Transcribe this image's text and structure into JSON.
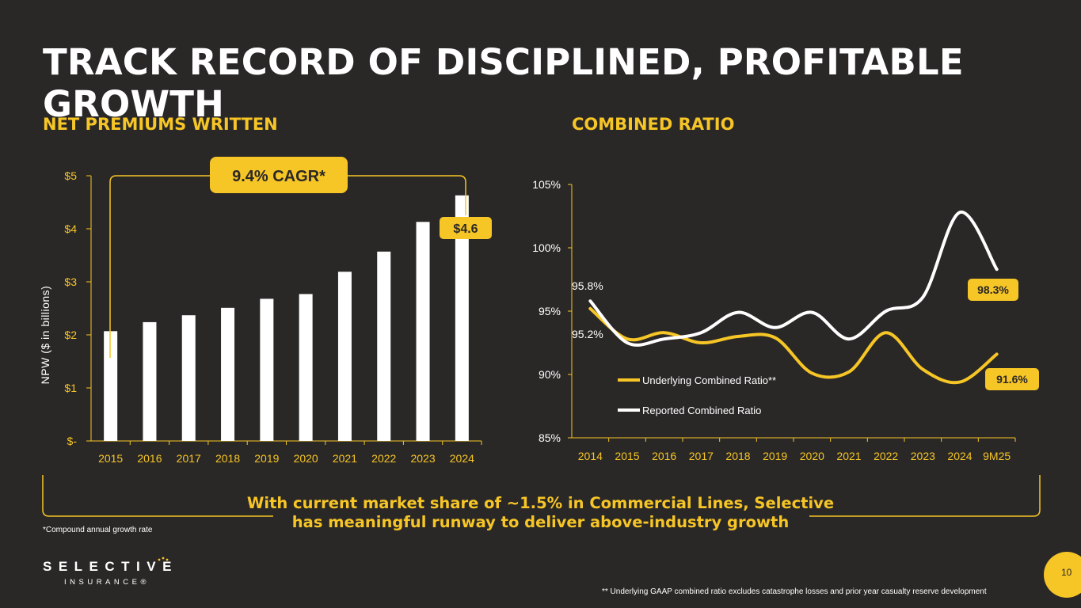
{
  "title": "TRACK RECORD OF DISCIPLINED, PROFITABLE GROWTH",
  "npw_heading": "NET PREMIUMS WRITTEN",
  "cr_heading": "COMBINED RATIO",
  "colors": {
    "accent": "#f6c526",
    "background": "#2a2827",
    "white": "#ffffff"
  },
  "chart_data": [
    {
      "type": "bar",
      "title": "",
      "xlabel": "",
      "ylabel": "NPW ($ in billions)",
      "categories": [
        "2015",
        "2016",
        "2017",
        "2018",
        "2019",
        "2020",
        "2021",
        "2022",
        "2023",
        "2024"
      ],
      "values": [
        2.07,
        2.24,
        2.37,
        2.51,
        2.68,
        2.77,
        3.19,
        3.57,
        4.13,
        4.63
      ],
      "ylim": [
        0,
        5
      ],
      "yticks": [
        0,
        1,
        2,
        3,
        4,
        5
      ],
      "ytick_labels": [
        "$-",
        "$1",
        "$2",
        "$3",
        "$4",
        "$5"
      ],
      "callout": "$4.6",
      "cagr_label": "9.4% CAGR*",
      "grid": false
    },
    {
      "type": "line",
      "title": "",
      "x": [
        "2014",
        "2015",
        "2016",
        "2017",
        "2018",
        "2019",
        "2020",
        "2021",
        "2022",
        "2023",
        "2024",
        "9M25"
      ],
      "ylim": [
        85,
        105
      ],
      "yticks": [
        85,
        90,
        95,
        100,
        105
      ],
      "ytick_labels": [
        "85%",
        "90%",
        "95%",
        "100%",
        "105%"
      ],
      "series": [
        {
          "name": "Underlying Combined Ratio**",
          "color": "#f6c526",
          "values": [
            95.2,
            92.8,
            93.3,
            92.5,
            93.0,
            92.9,
            90.1,
            90.2,
            93.3,
            90.4,
            89.4,
            91.6
          ]
        },
        {
          "name": "Reported Combined Ratio",
          "color": "#ffffff",
          "values": [
            95.8,
            92.5,
            92.8,
            93.3,
            94.9,
            93.7,
            94.9,
            92.8,
            95.0,
            96.1,
            102.8,
            98.3
          ]
        }
      ],
      "data_labels": {
        "reported_start": "95.8%",
        "underlying_start": "95.2%",
        "reported_end": "98.3%",
        "underlying_end": "91.6%"
      },
      "legend": "bottom-left",
      "grid": false
    }
  ],
  "bottom_message": {
    "line1": "With current market share of ~1.5% in Commercial Lines, Selective",
    "line2": "has meaningful runway to deliver above-industry growth"
  },
  "footnote_cagr": "*Compound annual growth rate",
  "footnote_gaap": "** Underlying GAAP combined ratio excludes catastrophe losses and prior year casualty reserve development",
  "page_number": "10",
  "logo": {
    "main": "SELECTIVE",
    "sub": "INSURANCE®"
  }
}
